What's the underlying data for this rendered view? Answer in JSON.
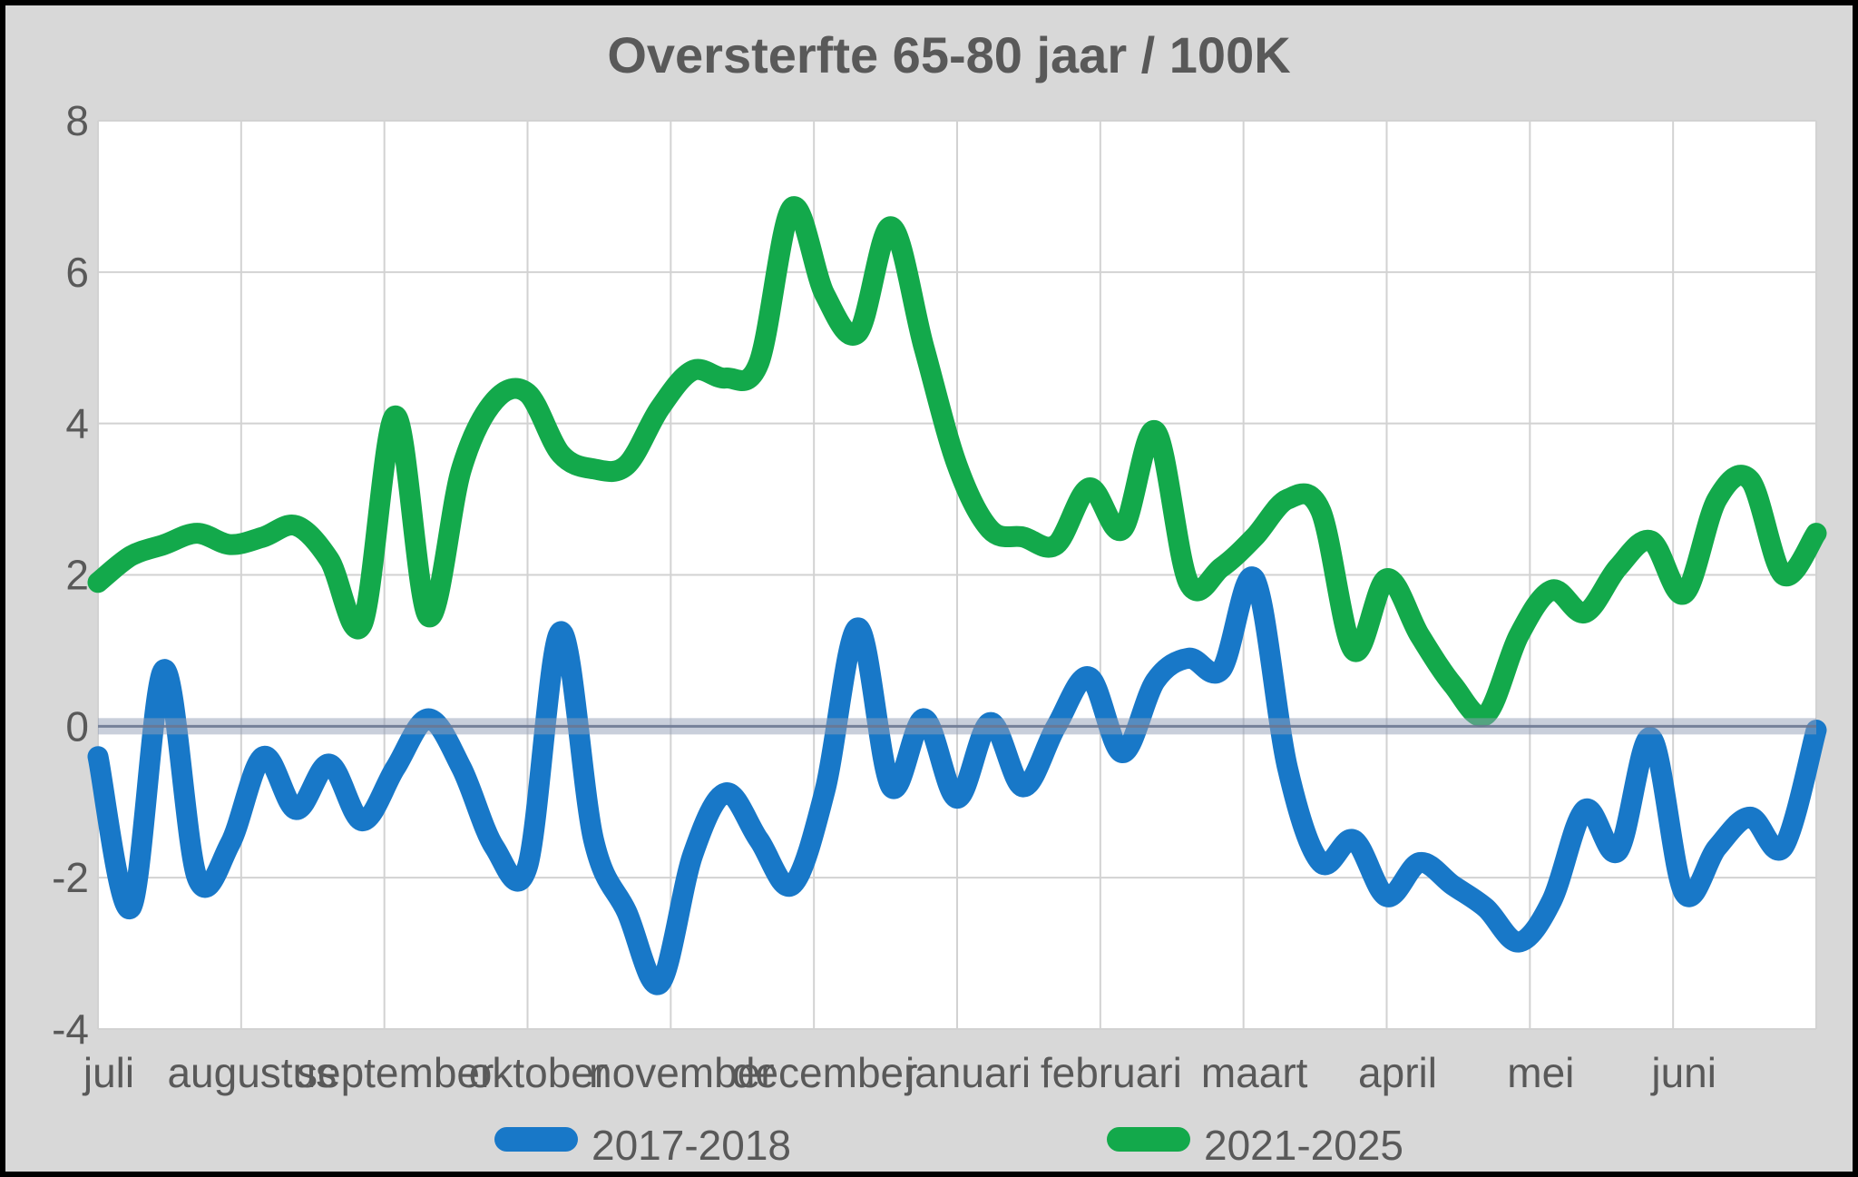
{
  "title": "Oversterfte 65-80 jaar / 100K",
  "colors": {
    "page_background": "#d8d8d8",
    "plot_background": "#ffffff",
    "gridline": "#d2d2d2",
    "text": "#595959",
    "blue_series": "#1878c8",
    "green_series": "#13a94b",
    "zero_band": "rgba(148,160,184,0.5)",
    "zero_line": "rgba(106,118,145,0.85)"
  },
  "chart_data": {
    "type": "line",
    "title": "Oversterfte 65-80 jaar / 100K",
    "xlabel": "",
    "ylabel": "",
    "x_tick_labels": [
      "juli",
      "augustus",
      "september",
      "oktober",
      "november",
      "december",
      "januari",
      "februari",
      "maart",
      "april",
      "mei",
      "juni"
    ],
    "y_ticks": [
      8,
      6,
      4,
      2,
      0,
      -2,
      -4
    ],
    "ylim": [
      -4,
      8
    ],
    "grid": true,
    "legend_position": "bottom",
    "baseline": {
      "value": 0
    },
    "points_per_year": 53,
    "series": [
      {
        "name": "2017-2018",
        "color": "#1878c8",
        "values": [
          -0.4,
          -2.4,
          0.75,
          -2.0,
          -1.55,
          -0.4,
          -1.1,
          -0.5,
          -1.25,
          -0.55,
          0.1,
          -0.55,
          -1.6,
          -1.85,
          1.25,
          -1.5,
          -2.45,
          -3.4,
          -1.7,
          -0.88,
          -1.5,
          -2.1,
          -0.85,
          1.3,
          -0.8,
          0.1,
          -0.95,
          0.05,
          -0.8,
          0.0,
          0.65,
          -0.35,
          0.6,
          0.9,
          0.75,
          1.95,
          -0.55,
          -1.8,
          -1.5,
          -2.25,
          -1.8,
          -2.1,
          -2.4,
          -2.85,
          -2.3,
          -1.1,
          -1.65,
          -0.15,
          -2.2,
          -1.6,
          -1.2,
          -1.6,
          -0.05
        ]
      },
      {
        "name": "2021-2025",
        "color": "#13a94b",
        "values": [
          1.9,
          2.25,
          2.4,
          2.55,
          2.4,
          2.5,
          2.65,
          2.2,
          1.35,
          4.1,
          1.45,
          3.4,
          4.3,
          4.4,
          3.6,
          3.4,
          3.45,
          4.2,
          4.7,
          4.6,
          4.8,
          6.85,
          5.7,
          5.2,
          6.6,
          5.0,
          3.45,
          2.6,
          2.5,
          2.4,
          3.15,
          2.6,
          3.9,
          1.9,
          2.1,
          2.5,
          3.0,
          2.85,
          1.0,
          1.95,
          1.2,
          0.55,
          0.15,
          1.2,
          1.8,
          1.5,
          2.1,
          2.45,
          1.75,
          3.0,
          3.25,
          2.0,
          2.55
        ]
      }
    ]
  },
  "legend": {
    "item1": "2017-2018",
    "item2": "2021-2025"
  }
}
